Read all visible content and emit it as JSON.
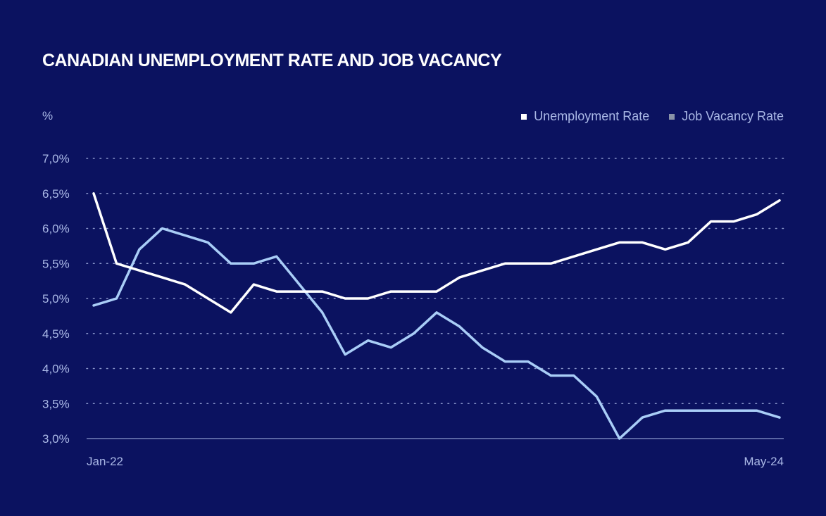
{
  "title": "CANADIAN UNEMPLOYMENT RATE AND JOB VACANCY",
  "unit_label": "%",
  "colors": {
    "background": "#0b1260",
    "unemployment": "#ffffff",
    "vacancy": "#a9cdf7",
    "vacancy_legend": "#8a93a8",
    "grid": "#aab8e6",
    "text": "#aab8e6"
  },
  "chart_data": {
    "type": "line",
    "title": "CANADIAN UNEMPLOYMENT RATE AND JOB VACANCY",
    "ylabel": "%",
    "ylim": [
      3.0,
      7.0
    ],
    "yticks": [
      3.0,
      3.5,
      4.0,
      4.5,
      5.0,
      5.5,
      6.0,
      6.5,
      7.0
    ],
    "ytick_labels": [
      "3,0%",
      "3,5%",
      "4,0%",
      "4,5%",
      "5,0%",
      "5,5%",
      "6,0%",
      "6,5%",
      "7,0%"
    ],
    "x_labels": [
      "Jan-22",
      "May-24"
    ],
    "legend": [
      "Unemployment Rate",
      "Job Vacancy Rate"
    ],
    "series": [
      {
        "name": "Unemployment Rate",
        "values": [
          6.5,
          5.5,
          5.4,
          5.3,
          5.2,
          5.0,
          4.8,
          5.2,
          5.1,
          5.1,
          5.1,
          5.0,
          5.0,
          5.1,
          5.1,
          5.1,
          5.3,
          5.4,
          5.5,
          5.5,
          5.5,
          5.6,
          5.7,
          5.8,
          5.8,
          5.7,
          5.8,
          6.1,
          6.1,
          6.2,
          6.4
        ]
      },
      {
        "name": "Job Vacancy Rate",
        "values": [
          4.9,
          5.0,
          5.7,
          6.0,
          5.9,
          5.8,
          5.5,
          5.5,
          5.6,
          5.2,
          4.8,
          4.2,
          4.4,
          4.3,
          4.5,
          4.8,
          4.6,
          4.3,
          4.1,
          4.1,
          3.9,
          3.9,
          3.6,
          3.0,
          3.3,
          3.4,
          3.4,
          3.4,
          3.4,
          3.4,
          3.3
        ]
      }
    ]
  }
}
